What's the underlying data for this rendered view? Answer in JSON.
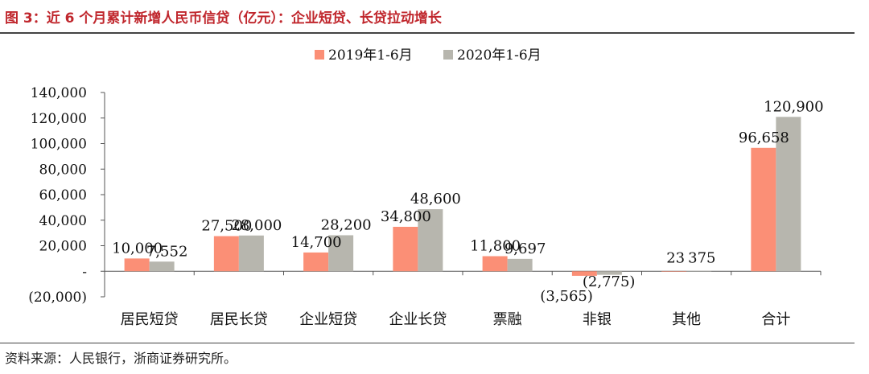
{
  "title": "图 3：近 6 个月累计新增人民币信贷（亿元）：企业短贷、长贷拉动增长",
  "source": "资料来源：人民银行，浙商证券研究所。",
  "colors": {
    "series1": "#fb8f76",
    "series2": "#b7b6ae",
    "title": "#c0272d",
    "axis": "#555555"
  },
  "chart_data": {
    "type": "bar",
    "categories": [
      "居民短贷",
      "居民长贷",
      "企业短贷",
      "企业长贷",
      "票融",
      "非银",
      "其他",
      "合计"
    ],
    "series": [
      {
        "name": "2019年1-6月",
        "values": [
          10000,
          27500,
          14700,
          34800,
          11800,
          -3565,
          23,
          96658
        ],
        "labels": [
          "10,000",
          "27,500",
          "14,700",
          "34,800",
          "11,800",
          "(3,565)",
          "23",
          "96,658"
        ]
      },
      {
        "name": "2020年1-6月",
        "values": [
          7552,
          28000,
          28200,
          48600,
          9697,
          -2775,
          375,
          120900
        ],
        "labels": [
          "7,552",
          "28,000",
          "28,200",
          "48,600",
          "9,697",
          "(2,775)",
          "375",
          "120,900"
        ]
      }
    ],
    "ylim": [
      -20000,
      140000
    ],
    "yticks": [
      -20000,
      0,
      20000,
      40000,
      60000,
      80000,
      100000,
      120000,
      140000
    ],
    "ytick_labels": [
      "(20,000)",
      "-",
      "20,000",
      "40,000",
      "60,000",
      "80,000",
      "100,000",
      "120,000",
      "140,000"
    ],
    "legend": "top",
    "grid": false
  }
}
